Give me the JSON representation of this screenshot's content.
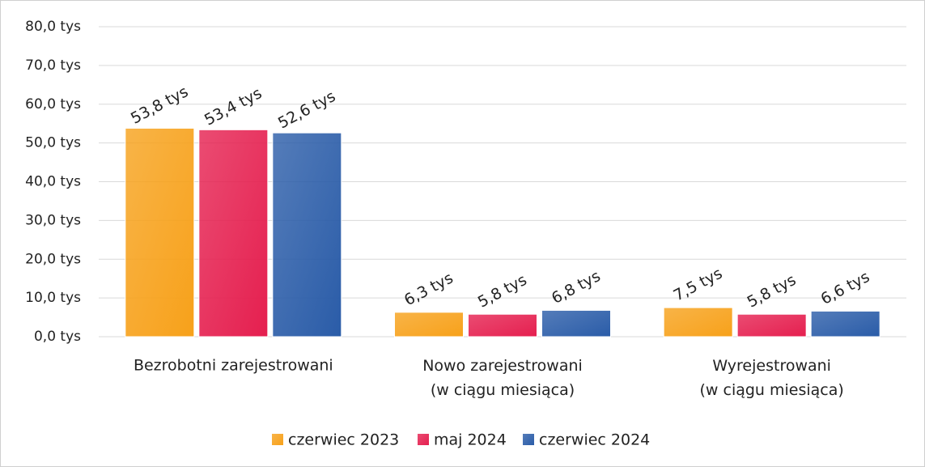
{
  "chart_data": {
    "type": "bar",
    "categories": [
      "Bezrobotni zarejestrowani",
      "Nowo zarejestrowani\n(w ciągu miesiąca)",
      "Wyrejestrowani\n(w ciągu miesiąca)"
    ],
    "series": [
      {
        "name": "czerwiec 2023",
        "color": "#f7a11a",
        "values": [
          53.8,
          6.3,
          7.5
        ],
        "value_labels": [
          "53,8 tys",
          "6,3 tys",
          "7,5 tys"
        ]
      },
      {
        "name": "maj 2024",
        "color": "#e51f4f",
        "values": [
          53.4,
          5.8,
          5.8
        ],
        "value_labels": [
          "53,4 tys",
          "5,8 tys",
          "5,8 tys"
        ]
      },
      {
        "name": "czerwiec 2024",
        "color": "#2a5ca8",
        "values": [
          52.6,
          6.8,
          6.6
        ],
        "value_labels": [
          "52,6 tys",
          "6,8 tys",
          "6,6 tys"
        ]
      }
    ],
    "ylim": [
      0,
      80
    ],
    "yticks": [
      {
        "value": 0,
        "label": "0,0 tys"
      },
      {
        "value": 10,
        "label": "10,0 tys"
      },
      {
        "value": 20,
        "label": "20,0 tys"
      },
      {
        "value": 30,
        "label": "30,0 tys"
      },
      {
        "value": 40,
        "label": "40,0 tys"
      },
      {
        "value": 50,
        "label": "50,0 tys"
      },
      {
        "value": 60,
        "label": "60,0 tys"
      },
      {
        "value": 70,
        "label": "70,0 tys"
      },
      {
        "value": 80,
        "label": "80,0 tys"
      }
    ],
    "grid": true,
    "legend": "bottom"
  }
}
